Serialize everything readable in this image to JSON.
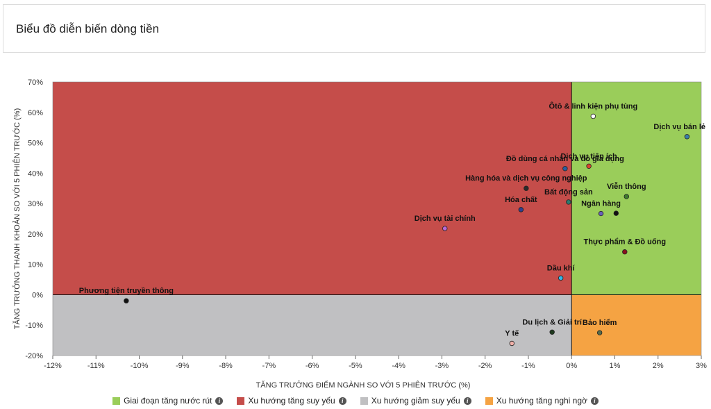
{
  "header": {
    "title": "Biểu đồ diễn biến dòng tiền"
  },
  "legend": [
    {
      "label": "Giai đoạn tăng nước rút",
      "color": "#9acd5a"
    },
    {
      "label": "Xu hướng tăng suy yếu",
      "color": "#c54d4a"
    },
    {
      "label": "Xu hướng giảm suy yếu",
      "color": "#c0c0c2"
    },
    {
      "label": "Xu hướng tăng nghi ngờ",
      "color": "#f5a343"
    }
  ],
  "chart_data": {
    "type": "scatter",
    "xlabel": "TĂNG TRƯỞNG ĐIỂM NGÀNH SO VỚI 5 PHIÊN TRƯỚC (%)",
    "ylabel": "TĂNG TRƯỞNG THANH KHOẢN SO VỚI 5 PHIÊN TRƯỚC (%)",
    "xlim": [
      -12,
      3
    ],
    "ylim": [
      -20,
      70
    ],
    "xticks": [
      -12,
      -11,
      -10,
      -9,
      -8,
      -7,
      -6,
      -5,
      -4,
      -3,
      -2,
      -1,
      0,
      1,
      2,
      3
    ],
    "yticks": [
      -20,
      -10,
      0,
      10,
      20,
      30,
      40,
      50,
      60,
      70
    ],
    "quadrants": {
      "top_right": "#9acd5a",
      "top_left": "#c54d4a",
      "bottom_left": "#c0c0c2",
      "bottom_right": "#f5a343"
    },
    "points": [
      {
        "name": "Ôtô & linh kiện phụ tùng",
        "x": 0.5,
        "y": 58.7,
        "color": "#ffffff"
      },
      {
        "name": "Dịch vụ bán lẻ",
        "x": 2.67,
        "y": 52.0,
        "color": "#3a7fa8"
      },
      {
        "name": "Đồ dùng cá nhân và đồ gia dụng",
        "x": -0.15,
        "y": 41.5,
        "color": "#2a5fa0"
      },
      {
        "name": "Dịch vụ tiện ích",
        "x": 0.4,
        "y": 42.3,
        "color": "#d9452f"
      },
      {
        "name": "Hàng hóa và dịch vụ công nghiệp",
        "x": -1.05,
        "y": 35.0,
        "color": "#2a2a2a"
      },
      {
        "name": "Bất động sản",
        "x": -0.07,
        "y": 30.5,
        "color": "#2d7a6e"
      },
      {
        "name": "Viễn thông",
        "x": 1.27,
        "y": 32.3,
        "color": "#3e7a2e"
      },
      {
        "name": "Hóa chất",
        "x": -1.17,
        "y": 28.0,
        "color": "#2d3f8f"
      },
      {
        "name": "Ngân hàng",
        "x": 0.68,
        "y": 26.7,
        "color": "#6a5fb8"
      },
      {
        "name": "",
        "x": 1.03,
        "y": 26.8,
        "color": "#111111"
      },
      {
        "name": "Dịch vụ tài chính",
        "x": -2.93,
        "y": 21.8,
        "color": "#b86ad8"
      },
      {
        "name": "Thực phẩm & Đồ uống",
        "x": 1.23,
        "y": 14.1,
        "color": "#8a0f1e"
      },
      {
        "name": "Dầu khí",
        "x": -0.25,
        "y": 5.5,
        "color": "#33b6e8"
      },
      {
        "name": "Phương tiện truyền thông",
        "x": -10.3,
        "y": -2.0,
        "color": "#111111"
      },
      {
        "name": "Du lịch & Giải trí",
        "x": -0.45,
        "y": -12.3,
        "color": "#1e3a1e"
      },
      {
        "name": "Bảo hiểm",
        "x": 0.65,
        "y": -12.5,
        "color": "#556b4a"
      },
      {
        "name": "Y tế",
        "x": -1.38,
        "y": -16.0,
        "color": "#f0b0a8"
      }
    ]
  }
}
